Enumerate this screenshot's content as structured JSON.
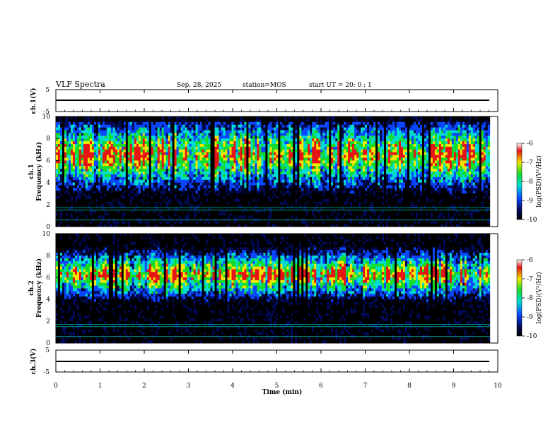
{
  "header": {
    "title": "VLF Spectra",
    "date": "Sep. 28, 2025",
    "station": "station=MOS",
    "start_ut": "start  UT =   20: 0  : 1"
  },
  "chart_data": [
    {
      "type": "line",
      "panel": "ch1-voltage",
      "ylabel": "ch.1(V)",
      "yticks": [
        "5",
        "-5"
      ],
      "ylim": [
        -5,
        5
      ],
      "series": [
        {
          "name": "ch.1",
          "value": 0
        }
      ]
    },
    {
      "type": "heatmap",
      "panel": "ch1-spectrogram",
      "ylabel": "ch.1\nFrequency (kHz)",
      "ylim": [
        0,
        10
      ],
      "yticks": [
        "0",
        "2",
        "4",
        "6",
        "8",
        "10"
      ],
      "colorbar": {
        "label": "log(PSD)(V²/Hz)",
        "range": [
          -10,
          -6
        ],
        "ticks": [
          "-6",
          "-7",
          "-8",
          "-9",
          "-10"
        ]
      },
      "peak_band_khz": [
        4,
        9
      ]
    },
    {
      "type": "heatmap",
      "panel": "ch2-spectrogram",
      "ylabel": "ch.2\nFrequency (kHz)",
      "ylim": [
        0,
        10
      ],
      "yticks": [
        "0",
        "2",
        "4",
        "6",
        "8",
        "10"
      ],
      "colorbar": {
        "label": "log(PSD)(V²/Hz)",
        "range": [
          -10,
          -6
        ],
        "ticks": [
          "-6",
          "-7",
          "-8",
          "-9",
          "-10"
        ]
      },
      "peak_band_khz": [
        4.5,
        8
      ]
    },
    {
      "type": "line",
      "panel": "ch3-voltage",
      "ylabel": "ch.3(V)",
      "yticks": [
        "5",
        "-5"
      ],
      "ylim": [
        -5,
        5
      ],
      "series": [
        {
          "name": "ch.3",
          "value": 0
        }
      ]
    }
  ],
  "xaxis": {
    "label": "Time (min)",
    "range": [
      0,
      10
    ],
    "data_end": 9.82,
    "ticks": [
      "0",
      "1",
      "2",
      "3",
      "4",
      "5",
      "6",
      "7",
      "8",
      "9",
      "10"
    ]
  },
  "colors": {
    "black": "#000000",
    "navy": "#000a55",
    "blue": "#0a46ff",
    "cyan": "#00dcd2",
    "green": "#14dc28",
    "yellow": "#f0e600",
    "red": "#e61414"
  }
}
